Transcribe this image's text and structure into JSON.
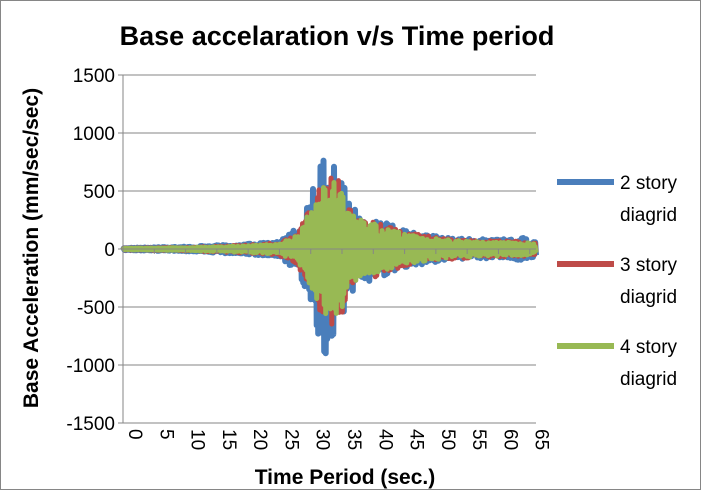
{
  "chart_data": {
    "type": "line",
    "title": "Base accelaration v/s Time period",
    "xlabel": "Time Period (sec.)",
    "ylabel": "Base Acceleration (mm/sec/sec)",
    "xlim": [
      0,
      66
    ],
    "ylim": [
      -1500,
      1500
    ],
    "x_ticks": [
      "0",
      "5",
      "10",
      "15",
      "20",
      "25",
      "30",
      "35",
      "40",
      "45",
      "50",
      "55",
      "60",
      "65"
    ],
    "y_ticks": [
      "1500",
      "1000",
      "500",
      "0",
      "-500",
      "-1000",
      "-1500"
    ],
    "grid": true,
    "legend_position": "right",
    "series": [
      {
        "name": "2 story diagrid",
        "legend_lines": [
          "2 story",
          "diagrid"
        ],
        "color": "#4a7ebb",
        "envelope": [
          [
            0,
            10
          ],
          [
            10,
            20
          ],
          [
            20,
            45
          ],
          [
            25,
            70
          ],
          [
            28,
            200
          ],
          [
            30,
            450
          ],
          [
            31,
            700
          ],
          [
            32,
            940
          ],
          [
            33,
            880
          ],
          [
            34,
            650
          ],
          [
            35,
            620
          ],
          [
            36,
            400
          ],
          [
            38,
            300
          ],
          [
            40,
            280
          ],
          [
            42,
            230
          ],
          [
            45,
            160
          ],
          [
            50,
            110
          ],
          [
            55,
            90
          ],
          [
            60,
            80
          ],
          [
            64,
            100
          ],
          [
            66,
            60
          ]
        ]
      },
      {
        "name": "3 story diagrid",
        "legend_lines": [
          "3 story",
          "diagrid"
        ],
        "color": "#be4b48",
        "envelope": [
          [
            0,
            8
          ],
          [
            10,
            15
          ],
          [
            20,
            35
          ],
          [
            25,
            55
          ],
          [
            28,
            150
          ],
          [
            30,
            380
          ],
          [
            31,
            500
          ],
          [
            32,
            600
          ],
          [
            33,
            680
          ],
          [
            34,
            620
          ],
          [
            35,
            560
          ],
          [
            36,
            350
          ],
          [
            38,
            280
          ],
          [
            40,
            250
          ],
          [
            42,
            200
          ],
          [
            45,
            150
          ],
          [
            50,
            100
          ],
          [
            55,
            80
          ],
          [
            60,
            70
          ],
          [
            64,
            70
          ],
          [
            66,
            50
          ]
        ]
      },
      {
        "name": "4 story diagrid",
        "legend_lines": [
          "4 story",
          "diagrid"
        ],
        "color": "#98b954",
        "envelope": [
          [
            0,
            6
          ],
          [
            10,
            12
          ],
          [
            20,
            30
          ],
          [
            25,
            45
          ],
          [
            28,
            120
          ],
          [
            30,
            350
          ],
          [
            31,
            450
          ],
          [
            32,
            560
          ],
          [
            33,
            600
          ],
          [
            34,
            580
          ],
          [
            35,
            520
          ],
          [
            36,
            320
          ],
          [
            38,
            250
          ],
          [
            40,
            220
          ],
          [
            42,
            180
          ],
          [
            45,
            130
          ],
          [
            50,
            90
          ],
          [
            55,
            70
          ],
          [
            60,
            60
          ],
          [
            64,
            60
          ],
          [
            66,
            40
          ]
        ]
      }
    ]
  }
}
